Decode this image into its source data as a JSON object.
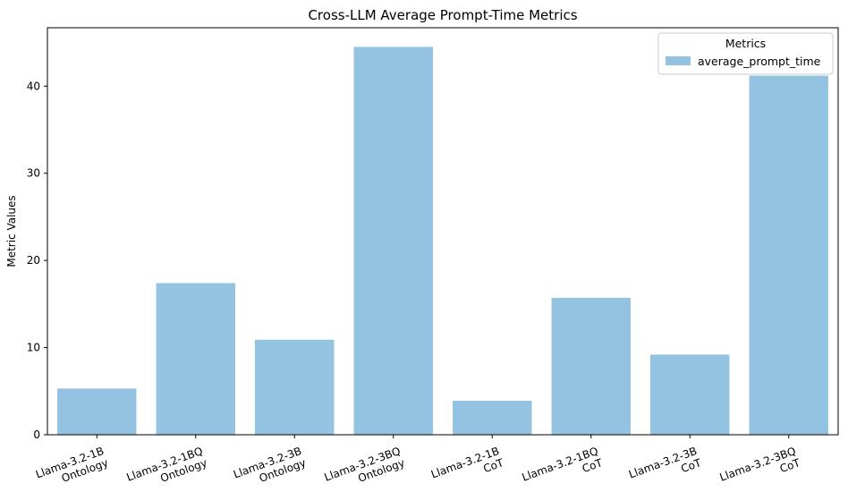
{
  "chart_data": {
    "type": "bar",
    "title": "Cross-LLM Average Prompt-Time Metrics",
    "xlabel": "",
    "ylabel": "Metric Values",
    "categories": [
      "Llama-3.2-1B\nOntology",
      "Llama-3.2-1BQ\nOntology",
      "Llama-3.2-3B\nOntology",
      "Llama-3.2-3BQ\nOntology",
      "Llama-3.2-1B\nCoT",
      "Llama-3.2-1BQ\nCoT",
      "Llama-3.2-3B\nCoT",
      "Llama-3.2-3BQ\nCoT"
    ],
    "series": [
      {
        "name": "average_prompt_time",
        "color": "#93c3e0",
        "values": [
          5.3,
          17.4,
          10.9,
          44.5,
          3.9,
          15.7,
          9.2,
          41.2
        ]
      }
    ],
    "ylim": [
      0,
      46.7
    ],
    "yticks": [
      0,
      10,
      20,
      30,
      40
    ],
    "grid": false,
    "legend": {
      "title": "Metrics",
      "placement": "top-right"
    }
  }
}
